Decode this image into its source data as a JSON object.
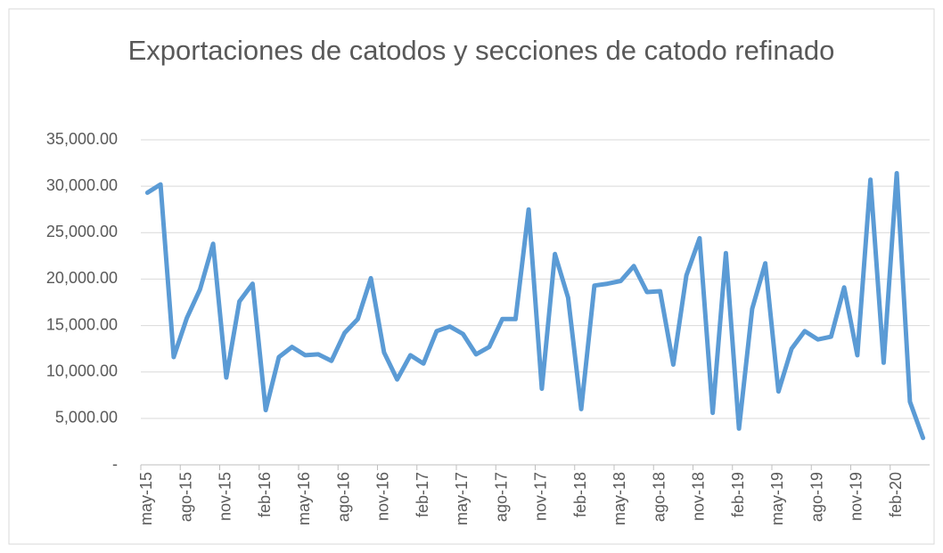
{
  "chart_data": {
    "type": "line",
    "title": "Exportaciones de catodos y secciones de catodo refinado",
    "categories": [
      "may-15",
      null,
      null,
      "ago-15",
      null,
      null,
      "nov-15",
      null,
      null,
      "feb-16",
      null,
      null,
      "may-16",
      null,
      null,
      "ago-16",
      null,
      null,
      "nov-16",
      null,
      null,
      "feb-17",
      null,
      null,
      "may-17",
      null,
      null,
      "ago-17",
      null,
      null,
      "nov-17",
      null,
      null,
      "feb-18",
      null,
      null,
      "may-18",
      null,
      null,
      "ago-18",
      null,
      null,
      "nov-18",
      null,
      null,
      "feb-19",
      null,
      null,
      "may-19",
      null,
      null,
      "ago-19",
      null,
      null,
      "nov-19",
      null,
      null,
      "feb-20",
      null,
      null
    ],
    "values": [
      29300,
      30200,
      11600,
      15800,
      18900,
      23800,
      9400,
      17600,
      19500,
      5900,
      11600,
      12700,
      11800,
      11900,
      11200,
      14200,
      15700,
      20100,
      12100,
      9200,
      11800,
      10900,
      14400,
      14900,
      14100,
      11900,
      12700,
      15700,
      15700,
      27500,
      8200,
      22700,
      18000,
      6000,
      19300,
      19500,
      19800,
      21400,
      18600,
      18700,
      10800,
      20400,
      24400,
      5600,
      22800,
      3900,
      16800,
      21700,
      7900,
      12500,
      14400,
      13500,
      13800,
      19100,
      11800,
      30700,
      11000,
      31400,
      6800,
      2900
    ],
    "color": "#5b9bd5",
    "ylim": [
      0,
      35000
    ],
    "yticks": [
      {
        "value": 0,
        "label": "-"
      },
      {
        "value": 5000,
        "label": "5,000.00"
      },
      {
        "value": 10000,
        "label": "10,000.00"
      },
      {
        "value": 15000,
        "label": "15,000.00"
      },
      {
        "value": 20000,
        "label": "20,000.00"
      },
      {
        "value": 25000,
        "label": "25,000.00"
      },
      {
        "value": 30000,
        "label": "30,000.00"
      },
      {
        "value": 35000,
        "label": "35,000.00"
      }
    ],
    "grid": true
  }
}
